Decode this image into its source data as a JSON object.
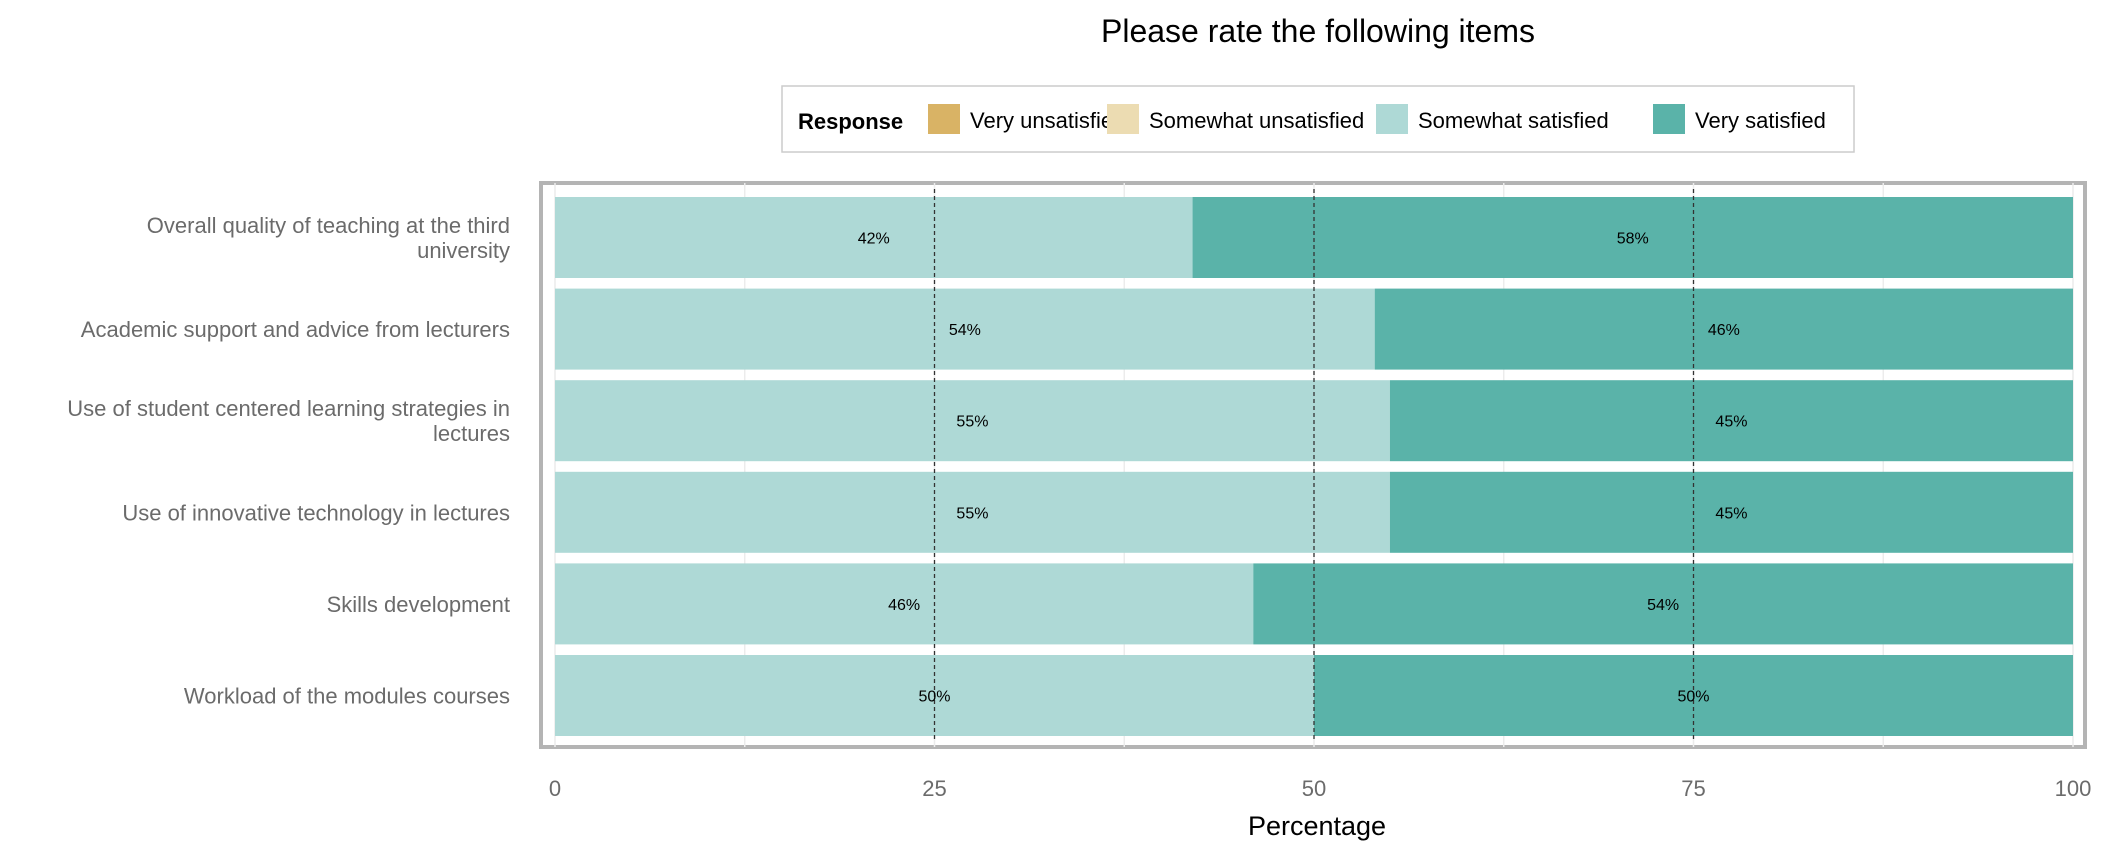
{
  "chart_data": {
    "type": "bar",
    "orientation": "horizontal",
    "stacked": true,
    "title": "Please rate the following items",
    "xlabel": "Percentage",
    "ylabel": "",
    "xlim": [
      0,
      100
    ],
    "x_ticks": [
      0,
      25,
      50,
      75,
      100
    ],
    "reference_lines": [
      25,
      50,
      75
    ],
    "grid": true,
    "legend": {
      "position": "top",
      "title": "Response",
      "entries": [
        {
          "name": "Very unsatisfied",
          "color": "#d9b365"
        },
        {
          "name": "Somewhat unsatisfied",
          "color": "#ecdcb2"
        },
        {
          "name": "Somewhat satisfied",
          "color": "#aed9d6"
        },
        {
          "name": "Very satisfied",
          "color": "#5ab3a9"
        }
      ]
    },
    "categories": [
      "Overall quality of teaching at the third university",
      "Academic support and advice from lecturers",
      "Use of student centered learning strategies in lectures",
      "Use of innovative technology in lectures",
      "Skills development",
      "Workload of the modules courses"
    ],
    "category_lines": [
      [
        "Overall quality of teaching at the third",
        "university"
      ],
      [
        "Academic support and advice from lecturers"
      ],
      [
        "Use of student centered learning strategies in",
        "lectures"
      ],
      [
        "Use of innovative technology in lectures"
      ],
      [
        "Skills development"
      ],
      [
        "Workload of the modules courses"
      ]
    ],
    "series": [
      {
        "name": "Somewhat satisfied",
        "color": "#aed9d6",
        "values": [
          42,
          54,
          55,
          55,
          46,
          50
        ],
        "labels": [
          "42%",
          "54%",
          "55%",
          "55%",
          "46%",
          "50%"
        ]
      },
      {
        "name": "Very satisfied",
        "color": "#5ab3a9",
        "values": [
          58,
          46,
          45,
          45,
          54,
          50
        ],
        "labels": [
          "58%",
          "46%",
          "45%",
          "45%",
          "54%",
          "50%"
        ]
      }
    ]
  }
}
